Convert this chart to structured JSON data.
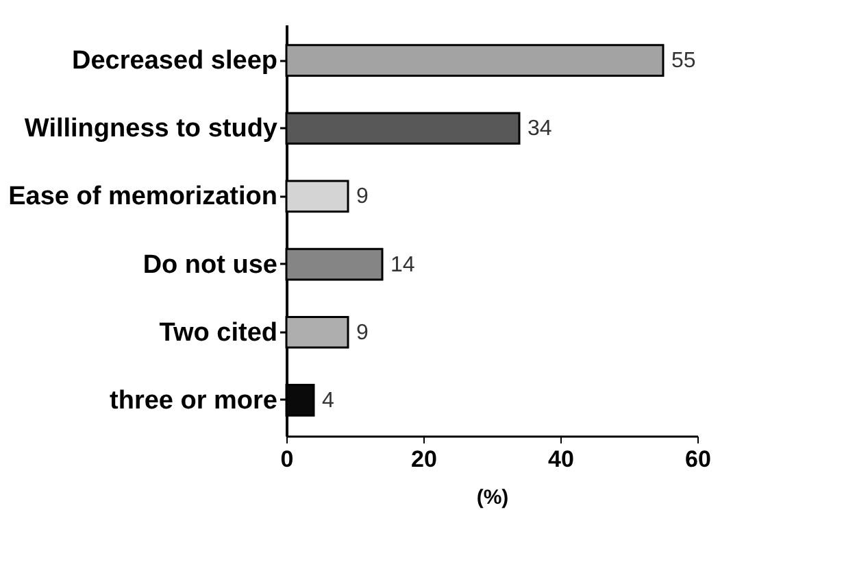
{
  "chart_data": {
    "type": "bar",
    "orientation": "horizontal",
    "categories": [
      "Decreased sleep",
      "Willingness to study",
      "Ease of memorization",
      "Do not use",
      "Two cited",
      "three or more"
    ],
    "values": [
      55,
      34,
      9,
      14,
      9,
      4
    ],
    "colors": [
      "#a3a3a3",
      "#585858",
      "#d4d4d4",
      "#858585",
      "#aeaeae",
      "#0a0a0a"
    ],
    "xlim": [
      0,
      60
    ],
    "xticks": [
      0,
      20,
      40,
      60
    ],
    "xlabel": "(%)",
    "data_labels": true,
    "grid": false
  }
}
